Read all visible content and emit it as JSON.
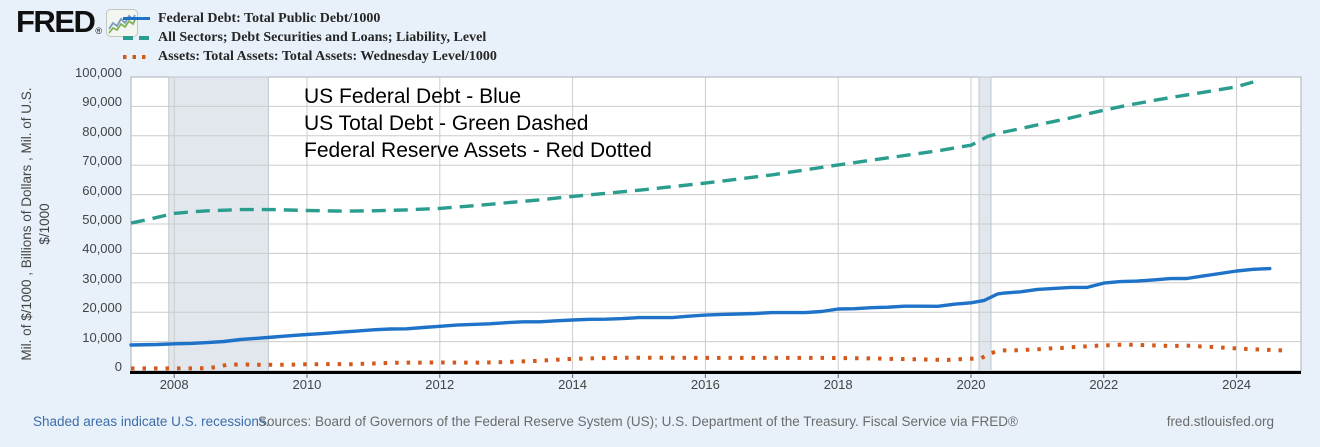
{
  "header": {
    "logo_text": "FRED",
    "registered_mark": "®"
  },
  "legend": {
    "items": [
      {
        "label": "Federal Debt: Total Public Debt/1000",
        "color": "#1e73c8",
        "line_style": "solid"
      },
      {
        "label": "All Sectors; Debt Securities and Loans; Liability, Level",
        "color": "#2a9d8f",
        "line_style": "dashed"
      },
      {
        "label": "Assets: Total Assets: Total Assets: Wednesday Level/1000",
        "color": "#d2591b",
        "line_style": "dotted"
      }
    ]
  },
  "annotation": {
    "lines": [
      "US Federal Debt - Blue",
      "US Total Debt - Green Dashed",
      "Federal Reserve Assets - Red Dotted"
    ]
  },
  "y_axis": {
    "title_line1": "Mil. of $/1000 , Billions of Dollars , Mil. of U.S.",
    "title_line2": "$/1000"
  },
  "footer": {
    "recession_note": "Shaded areas indicate U.S. recessions.",
    "sources": "Sources: Board of Governors of the Federal Reserve System (US); U.S. Department of the Treasury. Fiscal Service via FRED®",
    "site": "fred.stlouisfed.org"
  },
  "chart_data": {
    "type": "line",
    "xlabel": "",
    "ylabel": "Mil. of $/1000 , Billions of Dollars , Mil. of U.S. $/1000",
    "xlim": [
      2007.35,
      2024.97
    ],
    "ylim": [
      0,
      100000
    ],
    "grid": true,
    "legend_position": "top-left",
    "y_ticks": [
      {
        "value": 0,
        "label": "0"
      },
      {
        "value": 10000,
        "label": "10,000"
      },
      {
        "value": 20000,
        "label": "20,000"
      },
      {
        "value": 30000,
        "label": "30,000"
      },
      {
        "value": 40000,
        "label": "40,000"
      },
      {
        "value": 50000,
        "label": "50,000"
      },
      {
        "value": 60000,
        "label": "60,000"
      },
      {
        "value": 70000,
        "label": "70,000"
      },
      {
        "value": 80000,
        "label": "80,000"
      },
      {
        "value": 90000,
        "label": "90,000"
      },
      {
        "value": 100000,
        "label": "100,000"
      }
    ],
    "x_ticks": [
      {
        "value": 2008,
        "label": "2008"
      },
      {
        "value": 2010,
        "label": "2010"
      },
      {
        "value": 2012,
        "label": "2012"
      },
      {
        "value": 2014,
        "label": "2014"
      },
      {
        "value": 2016,
        "label": "2016"
      },
      {
        "value": 2018,
        "label": "2018"
      },
      {
        "value": 2020,
        "label": "2020"
      },
      {
        "value": 2022,
        "label": "2022"
      },
      {
        "value": 2024,
        "label": "2024"
      }
    ],
    "recessions": [
      {
        "start": 2007.92,
        "end": 2009.42
      },
      {
        "start": 2020.12,
        "end": 2020.3
      }
    ],
    "series": [
      {
        "name": "Federal Debt: Total Public Debt/1000",
        "color": "#1e73c8",
        "line_style": "solid",
        "width": 3.4,
        "dash": "",
        "x": [
          2007.35,
          2007.75,
          2008,
          2008.25,
          2008.5,
          2008.75,
          2009,
          2009.25,
          2009.5,
          2009.75,
          2010,
          2010.25,
          2010.5,
          2010.75,
          2011,
          2011.25,
          2011.5,
          2011.75,
          2012,
          2012.25,
          2012.5,
          2012.75,
          2013,
          2013.25,
          2013.5,
          2013.75,
          2014,
          2014.25,
          2014.5,
          2014.75,
          2015,
          2015.25,
          2015.5,
          2015.75,
          2016,
          2016.25,
          2016.5,
          2016.75,
          2017,
          2017.25,
          2017.5,
          2017.75,
          2018,
          2018.25,
          2018.5,
          2018.75,
          2019,
          2019.25,
          2019.5,
          2019.75,
          2020,
          2020.2,
          2020.4,
          2020.5,
          2020.75,
          2021,
          2021.25,
          2021.5,
          2021.75,
          2022,
          2022.25,
          2022.5,
          2022.75,
          2023,
          2023.25,
          2023.5,
          2023.75,
          2024,
          2024.25,
          2024.5
        ],
        "values": [
          8860,
          9010,
          9250,
          9400,
          9650,
          10030,
          10700,
          11130,
          11550,
          12000,
          12400,
          12800,
          13200,
          13560,
          14030,
          14270,
          14340,
          14790,
          15220,
          15600,
          15860,
          16070,
          16430,
          16740,
          16740,
          17080,
          17350,
          17600,
          17630,
          17820,
          18150,
          18150,
          18150,
          18650,
          19000,
          19250,
          19400,
          19570,
          19850,
          19850,
          19850,
          20250,
          21090,
          21200,
          21520,
          21700,
          22030,
          22030,
          22020,
          22720,
          23200,
          24000,
          26200,
          26480,
          26950,
          27750,
          28100,
          28430,
          28430,
          29900,
          30400,
          30570,
          31000,
          31420,
          31460,
          32330,
          33170,
          34000,
          34600,
          34830
        ]
      },
      {
        "name": "All Sectors; Debt Securities and Loans; Liability, Level",
        "color": "#2a9d8f",
        "line_style": "dashed",
        "width": 3.4,
        "dash": "14 8",
        "x": [
          2007.35,
          2007.6,
          2008,
          2008.25,
          2008.5,
          2009,
          2009.5,
          2010,
          2010.5,
          2011,
          2011.5,
          2012,
          2012.5,
          2013,
          2013.5,
          2014,
          2014.5,
          2015,
          2015.5,
          2016,
          2016.5,
          2017,
          2017.5,
          2018,
          2018.5,
          2019,
          2019.5,
          2020,
          2020.25,
          2020.5,
          2020.75,
          2021,
          2021.25,
          2021.5,
          2021.75,
          2022,
          2022.25,
          2022.5,
          2022.75,
          2023,
          2023.25,
          2023.5,
          2023.75,
          2024,
          2024.25
        ],
        "values": [
          50300,
          51500,
          53600,
          54100,
          54500,
          54900,
          54900,
          54600,
          54400,
          54500,
          54800,
          55300,
          56200,
          57200,
          58200,
          59400,
          60400,
          61500,
          62700,
          63900,
          65300,
          66700,
          68400,
          70100,
          71700,
          73300,
          74900,
          76800,
          79800,
          81300,
          82500,
          83700,
          84900,
          86100,
          87400,
          88700,
          89900,
          91000,
          92000,
          93000,
          93900,
          94800,
          95700,
          96700,
          98300
        ]
      },
      {
        "name": "Assets: Total Assets: Total Assets: Wednesday Level/1000",
        "color": "#d2591b",
        "line_style": "dotted",
        "width": 4,
        "dash": "3.5 8",
        "x": [
          2007.35,
          2007.75,
          2008.1,
          2008.5,
          2008.65,
          2008.8,
          2009,
          2009.25,
          2009.5,
          2009.75,
          2010,
          2010.33,
          2010.66,
          2011,
          2011.25,
          2011.5,
          2011.75,
          2012,
          2012.33,
          2012.66,
          2013,
          2013.25,
          2013.5,
          2013.75,
          2014,
          2014.25,
          2014.5,
          2014.75,
          2015,
          2015.33,
          2015.66,
          2016,
          2016.33,
          2016.66,
          2017,
          2017.33,
          2017.66,
          2018,
          2018.25,
          2018.5,
          2018.75,
          2019,
          2019.25,
          2019.5,
          2019.65,
          2019.8,
          2020,
          2020.15,
          2020.3,
          2020.45,
          2020.6,
          2020.75,
          2020.9,
          2021.05,
          2021.2,
          2021.35,
          2021.5,
          2021.65,
          2021.8,
          2021.95,
          2022.1,
          2022.3,
          2022.45,
          2022.6,
          2022.75,
          2022.9,
          2023.05,
          2023.2,
          2023.35,
          2023.5,
          2023.65,
          2023.8,
          2023.95,
          2024.1,
          2024.25,
          2024.4,
          2024.55,
          2024.78
        ],
        "values": [
          870,
          890,
          900,
          940,
          1400,
          2150,
          2200,
          2150,
          2100,
          2150,
          2280,
          2330,
          2300,
          2550,
          2750,
          2850,
          2870,
          2900,
          2870,
          2850,
          3050,
          3250,
          3500,
          3800,
          4100,
          4300,
          4400,
          4480,
          4500,
          4480,
          4480,
          4460,
          4470,
          4450,
          4460,
          4470,
          4450,
          4410,
          4360,
          4270,
          4140,
          4040,
          3940,
          3810,
          3760,
          3970,
          4170,
          4310,
          6080,
          7010,
          7010,
          7060,
          7300,
          7450,
          7690,
          7830,
          8080,
          8270,
          8480,
          8660,
          8790,
          8950,
          8900,
          8820,
          8720,
          8600,
          8470,
          8670,
          8550,
          8300,
          8150,
          7950,
          7750,
          7550,
          7400,
          7250,
          7150,
          6900
        ]
      }
    ],
    "plot_colors": {
      "background": "#ffffff",
      "page_background": "#e8f1fa",
      "grid": "#cccccc",
      "border": "#a8aeb5",
      "recession_band": "#e2e7ed",
      "recession_edge": "#bfc5cd",
      "axis_line": "#000000",
      "tick_text": "#444444"
    }
  }
}
